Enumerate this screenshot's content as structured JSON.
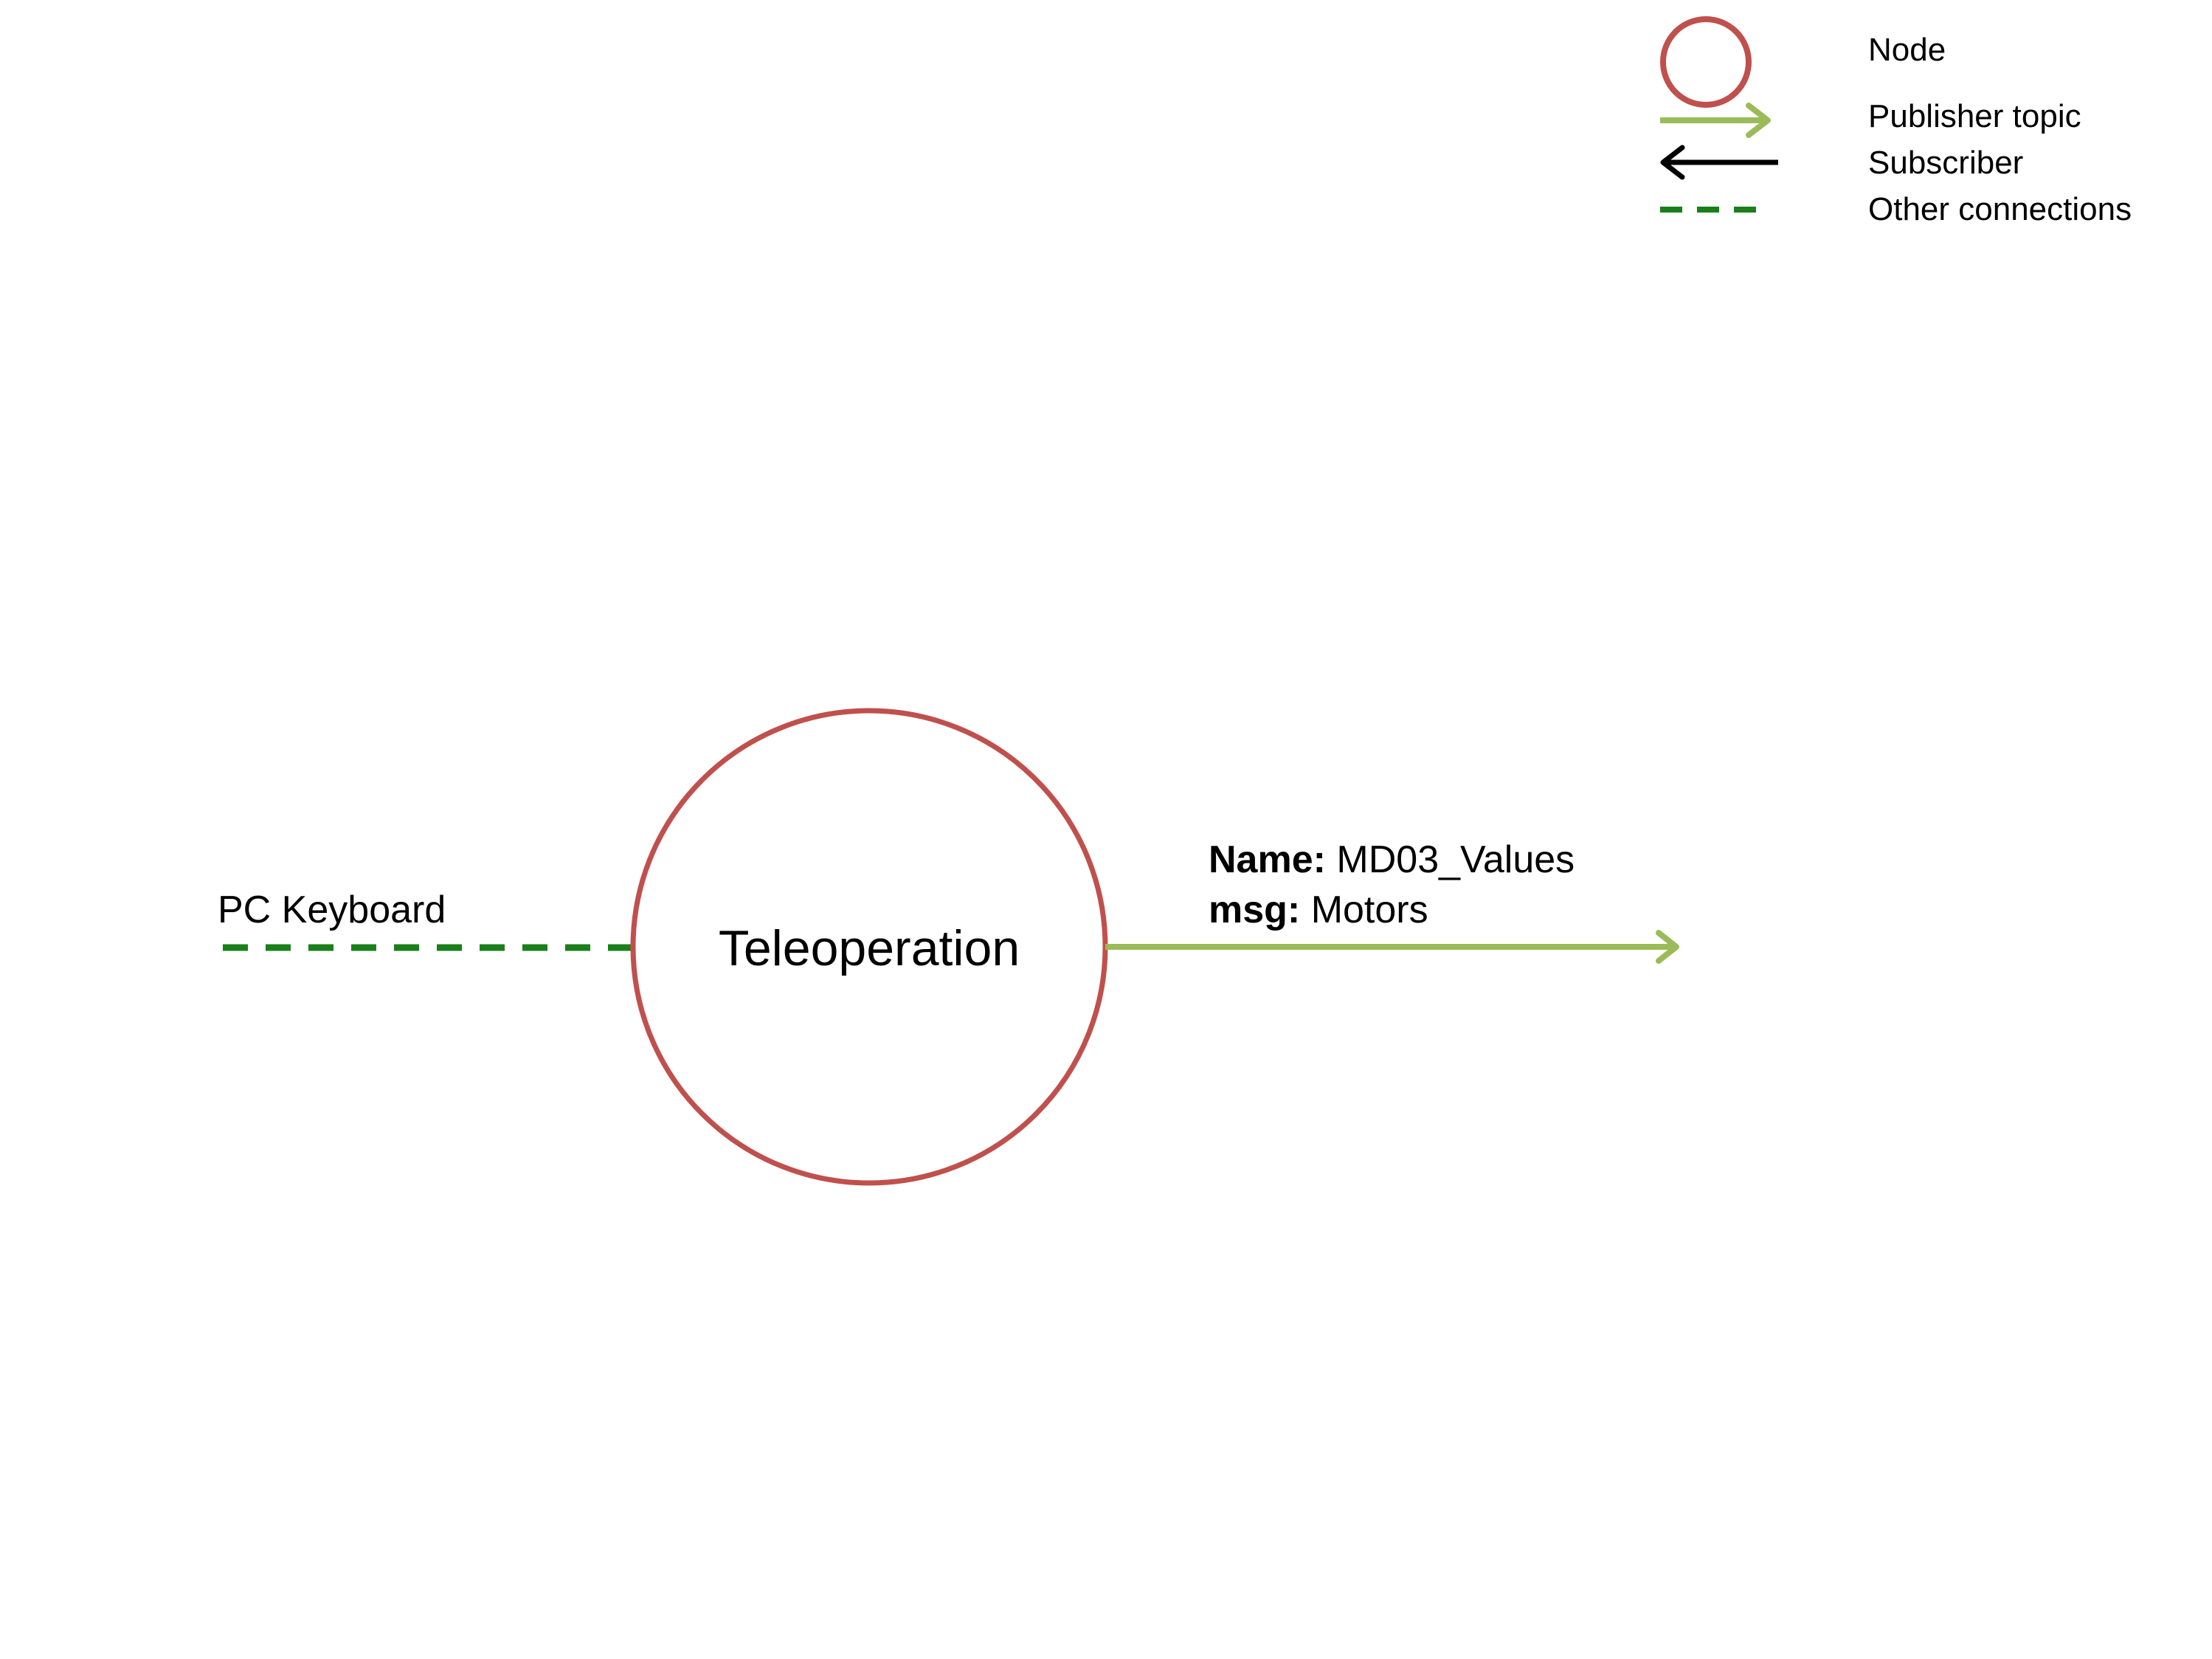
{
  "colors": {
    "node": "#c0504d",
    "publisher": "#9bbb59",
    "subscriber": "#000000",
    "other": "#1a7f1a"
  },
  "legend": {
    "node": "Node",
    "publisher": "Publisher topic",
    "subscriber": "Subscriber",
    "other": "Other connections"
  },
  "node": {
    "label": "Teleoperation"
  },
  "input": {
    "label": "PC Keyboard"
  },
  "output": {
    "name_key": "Name:",
    "name_value": " MD03_Values",
    "msg_key": "msg:",
    "msg_value": " Motors"
  }
}
